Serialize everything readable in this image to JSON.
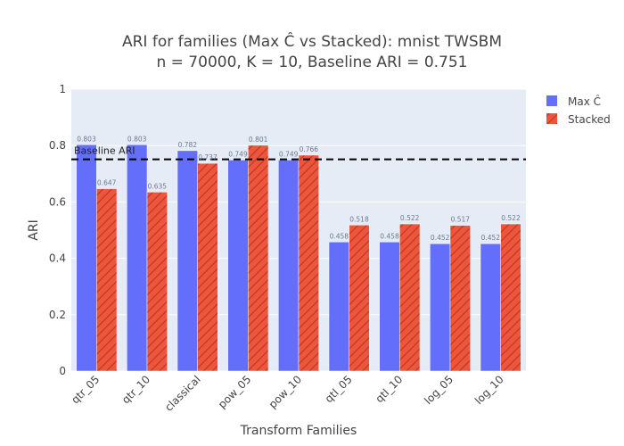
{
  "chart_data": {
    "type": "bar",
    "title_line1": "ARI for families (Max Ĉ vs Stacked): mnist TWSBM",
    "title_line2": "n = 70000, K = 10, Baseline ARI = 0.751",
    "xlabel": "Transform Families",
    "ylabel": "ARI",
    "ylim": [
      0,
      1
    ],
    "yticks": [
      "0",
      "0.2",
      "0.4",
      "0.6",
      "0.8",
      "1"
    ],
    "grid": true,
    "legend_position": "top-right",
    "categories": [
      "qtr_05",
      "qtr_10",
      "classical",
      "pow_05",
      "pow_10",
      "qtl_05",
      "qtl_10",
      "log_05",
      "log_10"
    ],
    "series": [
      {
        "name": "Max Ĉ",
        "color": "#636efa",
        "values": [
          0.803,
          0.803,
          0.782,
          0.749,
          0.749,
          0.458,
          0.458,
          0.452,
          0.452
        ],
        "labels": [
          "0.803",
          "0.803",
          "0.782",
          "0.749",
          "0.749",
          "0.458",
          "0.458",
          "0.452",
          "0.452"
        ]
      },
      {
        "name": "Stacked",
        "color": "#ef553b",
        "pattern": "diagonal-hatch",
        "values": [
          0.647,
          0.635,
          0.737,
          0.801,
          0.766,
          0.518,
          0.522,
          0.517,
          0.522
        ],
        "labels": [
          "0.647",
          "0.635",
          "0.737",
          "0.801",
          "0.766",
          "0.518",
          "0.522",
          "0.517",
          "0.522"
        ]
      }
    ],
    "baseline": {
      "value": 0.751,
      "label": "Baseline ARI",
      "style": "dashed",
      "color": "#000000"
    }
  },
  "colors": {
    "plot_background": "#e5ecf6",
    "grid": "#ffffff",
    "text": "#444444",
    "bar_label": "#6b7a90"
  }
}
